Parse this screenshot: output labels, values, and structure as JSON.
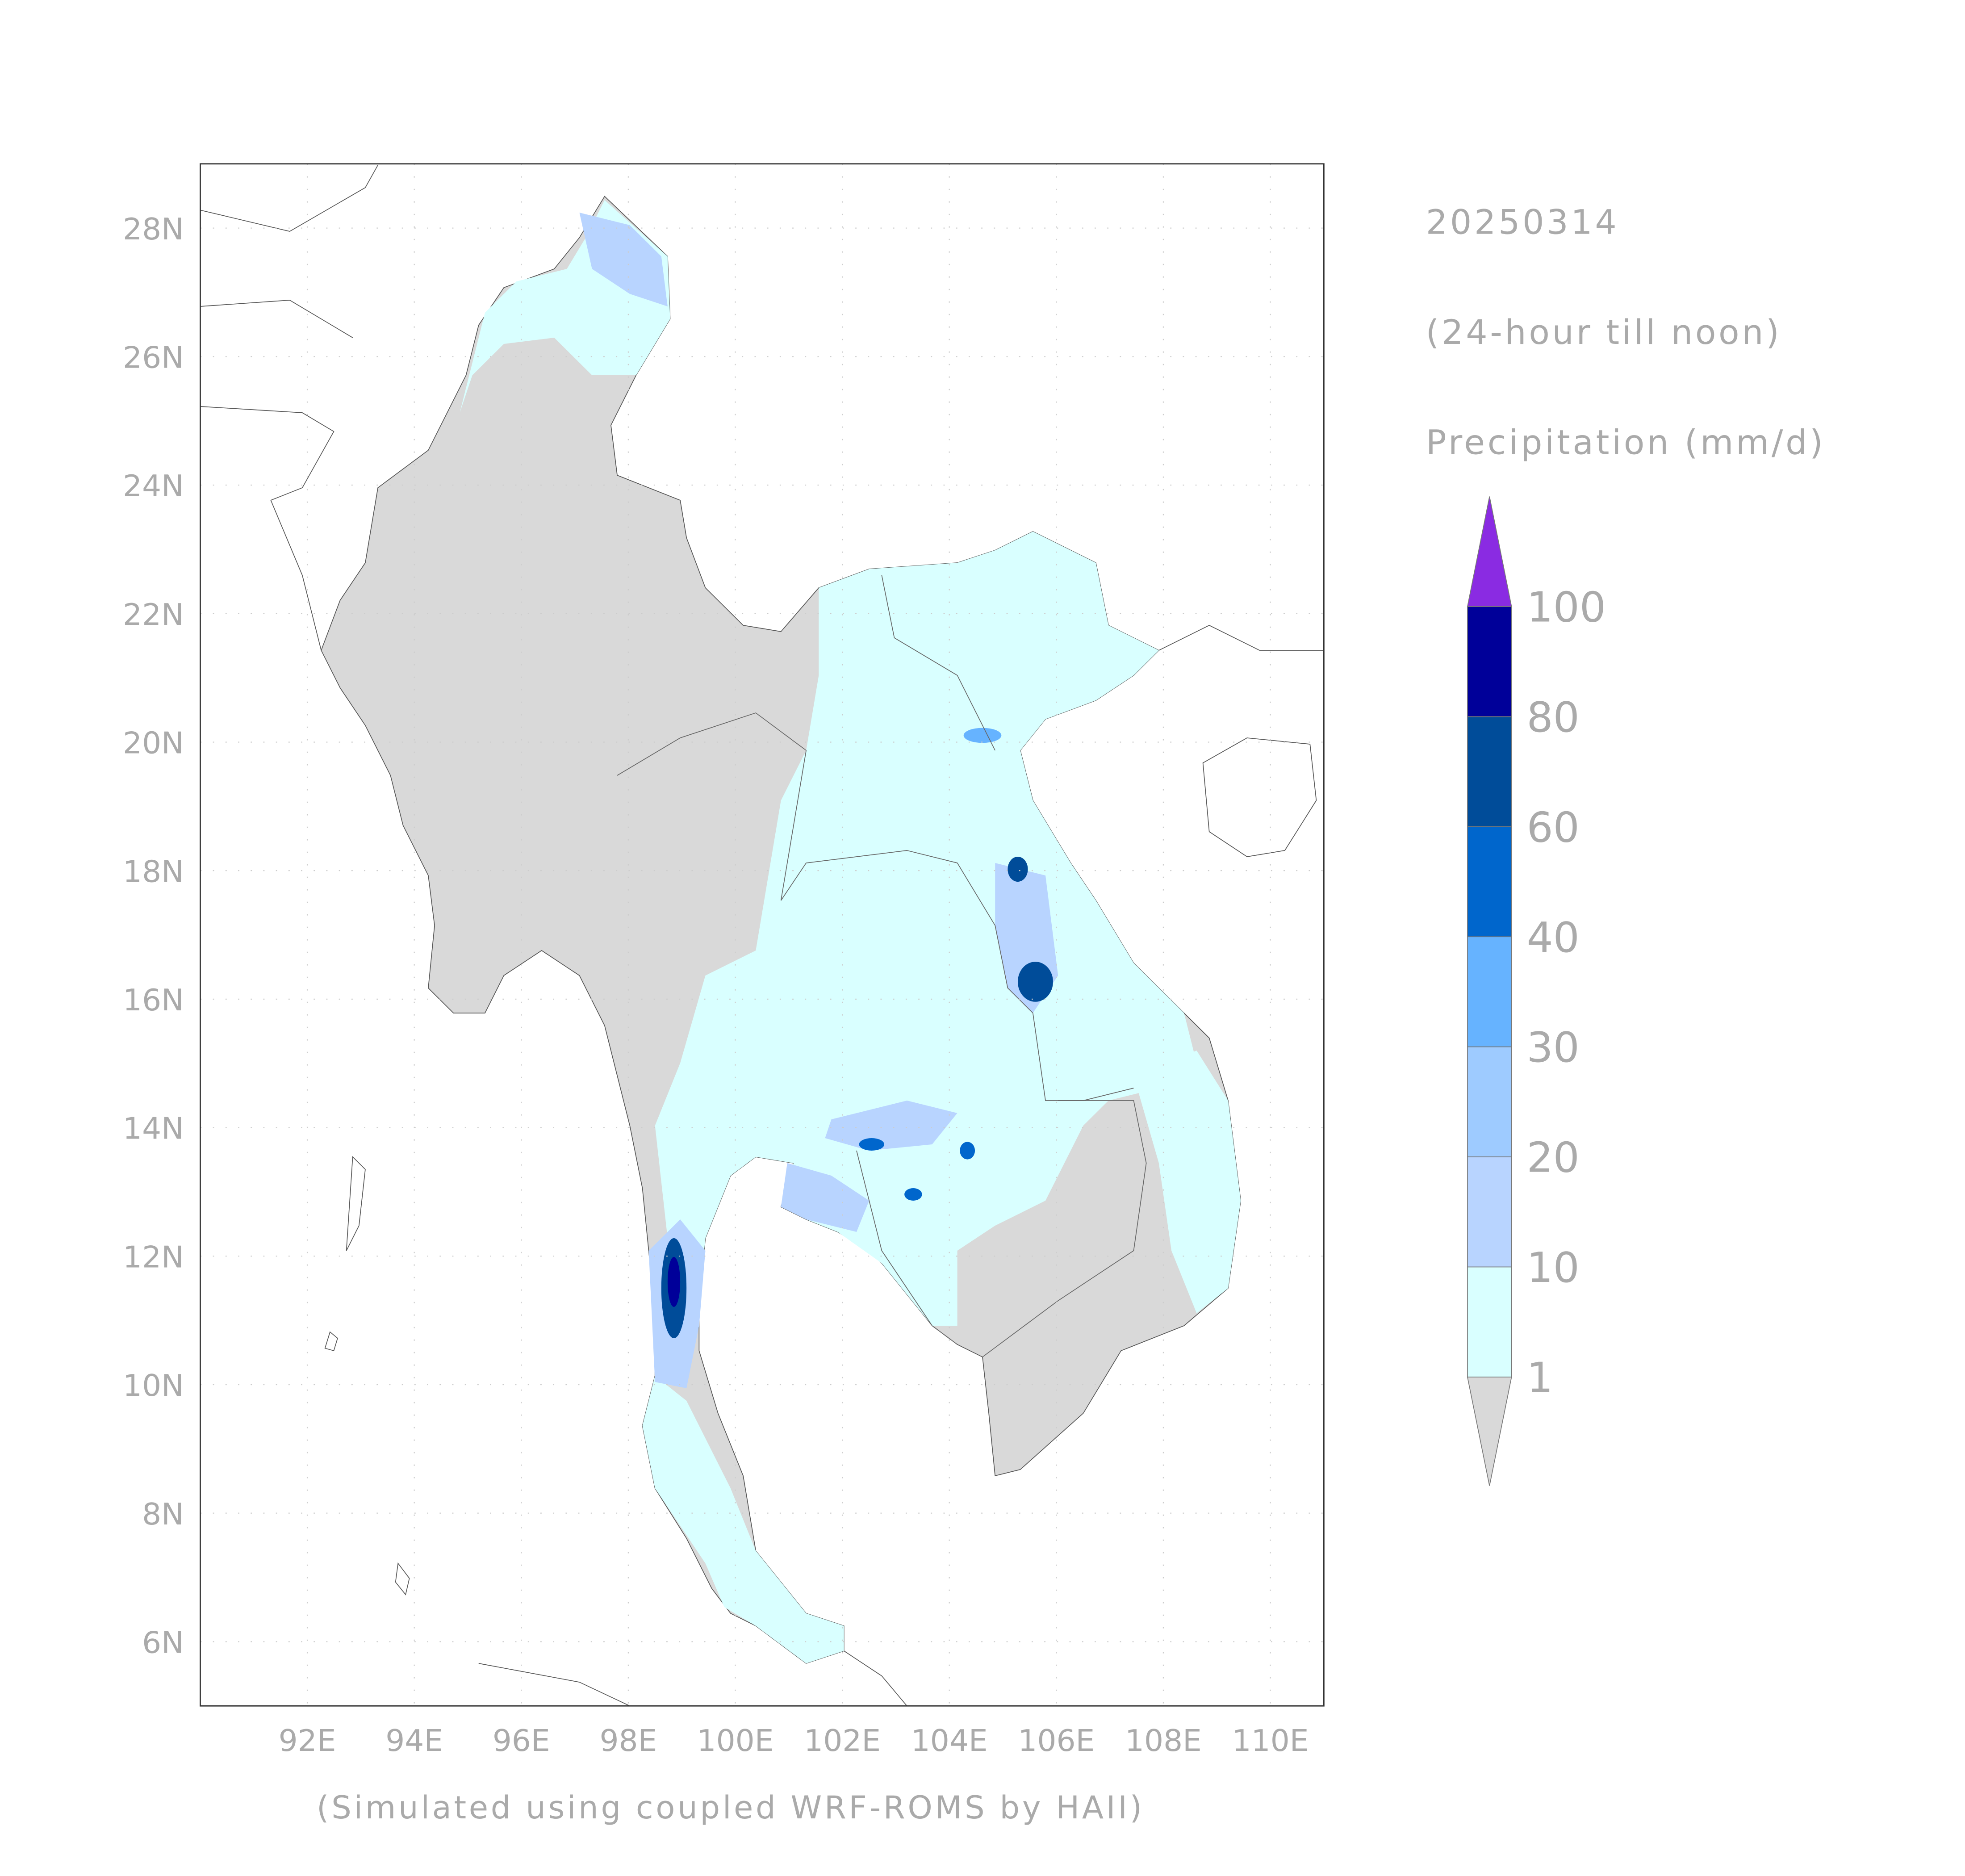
{
  "title": "20250314",
  "subtitle": "(24-hour till noon)",
  "variable": "Precipitation (mm/d)",
  "footer": "(Simulated using coupled WRF-ROMS by HAII)",
  "map": {
    "xlim": [
      90,
      111
    ],
    "ylim": [
      5,
      29
    ],
    "xticks": [
      {
        "value": 92,
        "label": "92E"
      },
      {
        "value": 94,
        "label": "94E"
      },
      {
        "value": 96,
        "label": "96E"
      },
      {
        "value": 98,
        "label": "98E"
      },
      {
        "value": 100,
        "label": "100E"
      },
      {
        "value": 102,
        "label": "102E"
      },
      {
        "value": 104,
        "label": "104E"
      },
      {
        "value": 106,
        "label": "106E"
      },
      {
        "value": 108,
        "label": "108E"
      },
      {
        "value": 110,
        "label": "110E"
      }
    ],
    "yticks": [
      {
        "value": 6,
        "label": "6N"
      },
      {
        "value": 8,
        "label": "8N"
      },
      {
        "value": 10,
        "label": "10N"
      },
      {
        "value": 12,
        "label": "12N"
      },
      {
        "value": 14,
        "label": "14N"
      },
      {
        "value": 16,
        "label": "16N"
      },
      {
        "value": 18,
        "label": "18N"
      },
      {
        "value": 20,
        "label": "20N"
      },
      {
        "value": 22,
        "label": "22N"
      },
      {
        "value": 24,
        "label": "24N"
      },
      {
        "value": 26,
        "label": "26N"
      },
      {
        "value": 28,
        "label": "28N"
      }
    ],
    "grid": true
  },
  "colorbar": {
    "levels": [
      1,
      10,
      20,
      30,
      40,
      60,
      80,
      100
    ],
    "colors": [
      "#d9d9d9",
      "#d9ffff",
      "#b8d4ff",
      "#9ecbff",
      "#66b3ff",
      "#0066cc",
      "#004c99",
      "#000099",
      "#8a2be2"
    ]
  }
}
